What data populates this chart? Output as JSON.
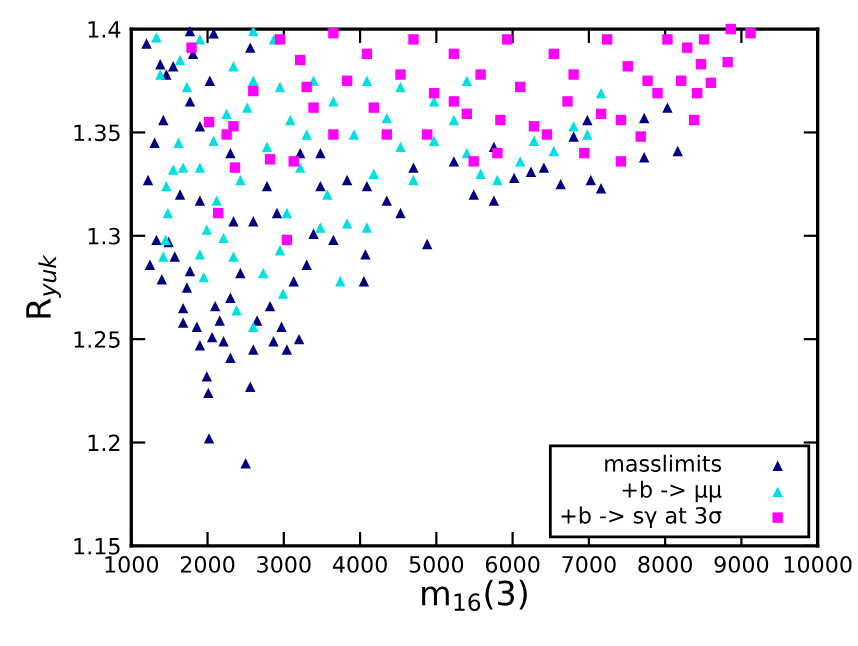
{
  "chart_data": {
    "type": "scatter",
    "xlabel": "m$_{16}$(3)",
    "ylabel": "R$_{yuk}$",
    "xlim": [
      1000,
      10000
    ],
    "xticks": [
      1000,
      2000,
      3000,
      4000,
      5000,
      6000,
      7000,
      8000,
      9000,
      10000
    ],
    "ylim": [
      1.15,
      1.4
    ],
    "yticks": [
      1.15,
      1.2,
      1.25,
      1.3,
      1.35,
      1.4
    ],
    "grid": false,
    "legend": "bottom right",
    "series": [
      {
        "name": "masslimits",
        "color": "#000080",
        "marker": "triangle",
        "x": [
          1200,
          1220,
          1306,
          1245,
          1330,
          1400,
          1490,
          1570,
          1680,
          1680,
          1730,
          1770,
          1860,
          1900,
          1990,
          2010,
          2020,
          2060,
          2100,
          2160,
          2210,
          2300,
          2300,
          2430,
          2500,
          2560,
          2600,
          2650,
          2865,
          3040,
          3200,
          2970,
          2820,
          3130,
          3300,
          3390,
          3650,
          4050,
          4070,
          4880,
          5490,
          5755,
          6020,
          6240,
          6630,
          7025,
          7160,
          7725,
          7725,
          8030,
          8165,
          6980,
          4530,
          4350,
          3830,
          3480,
          2780,
          2600,
          2340,
          1900,
          1640,
          1900,
          1770,
          1550,
          1810,
          2030,
          1770,
          2080,
          2560,
          3215,
          4090,
          4700,
          5230,
          5755,
          6410,
          6800,
          1420,
          2300,
          3480,
          2910,
          1460,
          1380
        ],
        "values": [
          1.393,
          1.327,
          1.345,
          1.286,
          1.298,
          1.279,
          1.297,
          1.29,
          1.265,
          1.258,
          1.275,
          1.283,
          1.256,
          1.247,
          1.232,
          1.224,
          1.202,
          1.251,
          1.266,
          1.259,
          1.249,
          1.241,
          1.27,
          1.282,
          1.19,
          1.227,
          1.245,
          1.259,
          1.249,
          1.245,
          1.25,
          1.256,
          1.266,
          1.278,
          1.286,
          1.301,
          1.298,
          1.278,
          1.291,
          1.296,
          1.32,
          1.317,
          1.328,
          1.331,
          1.325,
          1.327,
          1.323,
          1.338,
          1.357,
          1.362,
          1.341,
          1.356,
          1.311,
          1.317,
          1.327,
          1.324,
          1.324,
          1.307,
          1.307,
          1.317,
          1.32,
          1.353,
          1.365,
          1.382,
          1.388,
          1.375,
          1.399,
          1.398,
          1.391,
          1.34,
          1.324,
          1.333,
          1.336,
          1.343,
          1.333,
          1.348,
          1.356,
          1.34,
          1.34,
          1.311,
          1.378,
          1.383
        ]
      },
      {
        "name": "+b -> μμ",
        "color": "#00e0e0",
        "marker": "triangle",
        "x": [
          1330,
          1380,
          1450,
          1480,
          1420,
          1550,
          1620,
          1640,
          1730,
          1900,
          1900,
          1950,
          1990,
          2080,
          2120,
          2210,
          2340,
          2380,
          2430,
          2520,
          2600,
          2600,
          2730,
          2780,
          2870,
          2950,
          2990,
          3040,
          3085,
          3215,
          3390,
          3480,
          3570,
          3740,
          3830,
          3920,
          4090,
          4180,
          4350,
          4530,
          4700,
          4970,
          5230,
          5400,
          5580,
          5800,
          6100,
          6280,
          6540,
          6800,
          6980,
          7160,
          2950,
          2340,
          1900,
          2600,
          3300,
          3650,
          4090,
          4530,
          4970,
          5400,
          1460,
          1680,
          2250
        ],
        "values": [
          1.396,
          1.378,
          1.298,
          1.311,
          1.29,
          1.332,
          1.345,
          1.385,
          1.372,
          1.333,
          1.291,
          1.28,
          1.303,
          1.346,
          1.317,
          1.299,
          1.29,
          1.264,
          1.327,
          1.362,
          1.256,
          1.375,
          1.282,
          1.343,
          1.395,
          1.293,
          1.272,
          1.311,
          1.356,
          1.333,
          1.375,
          1.304,
          1.32,
          1.278,
          1.306,
          1.349,
          1.304,
          1.33,
          1.357,
          1.343,
          1.327,
          1.346,
          1.356,
          1.34,
          1.33,
          1.327,
          1.336,
          1.346,
          1.341,
          1.353,
          1.349,
          1.369,
          1.372,
          1.382,
          1.395,
          1.399,
          1.349,
          1.365,
          1.375,
          1.372,
          1.365,
          1.375,
          1.324,
          1.333,
          1.359
        ]
      },
      {
        "name": "+b -> sγ at 3σ",
        "color": "#ff00ff",
        "marker": "square",
        "x": [
          1790,
          2020,
          2340,
          2250,
          2360,
          2140,
          2600,
          2820,
          3040,
          2950,
          3215,
          3390,
          3650,
          3830,
          4090,
          4350,
          4530,
          4700,
          4970,
          5230,
          5400,
          5490,
          5800,
          5930,
          6100,
          6280,
          6540,
          6720,
          6940,
          7160,
          7420,
          7420,
          7510,
          7680,
          7900,
          8030,
          8210,
          8380,
          8420,
          8470,
          8600,
          8510,
          8820,
          8860,
          9120,
          8290,
          7770,
          7240,
          6800,
          5580,
          4180,
          4880,
          5230,
          5840,
          6450,
          3650,
          3130,
          3300
        ],
        "values": [
          1.391,
          1.355,
          1.353,
          1.349,
          1.333,
          1.311,
          1.37,
          1.337,
          1.298,
          1.395,
          1.385,
          1.362,
          1.398,
          1.375,
          1.388,
          1.349,
          1.378,
          1.395,
          1.369,
          1.388,
          1.359,
          1.336,
          1.34,
          1.395,
          1.372,
          1.353,
          1.388,
          1.365,
          1.34,
          1.359,
          1.336,
          1.356,
          1.382,
          1.348,
          1.369,
          1.395,
          1.375,
          1.356,
          1.369,
          1.383,
          1.374,
          1.395,
          1.384,
          1.4,
          1.398,
          1.391,
          1.375,
          1.395,
          1.378,
          1.378,
          1.362,
          1.349,
          1.365,
          1.356,
          1.349,
          1.349,
          1.336,
          1.372
        ]
      }
    ]
  }
}
